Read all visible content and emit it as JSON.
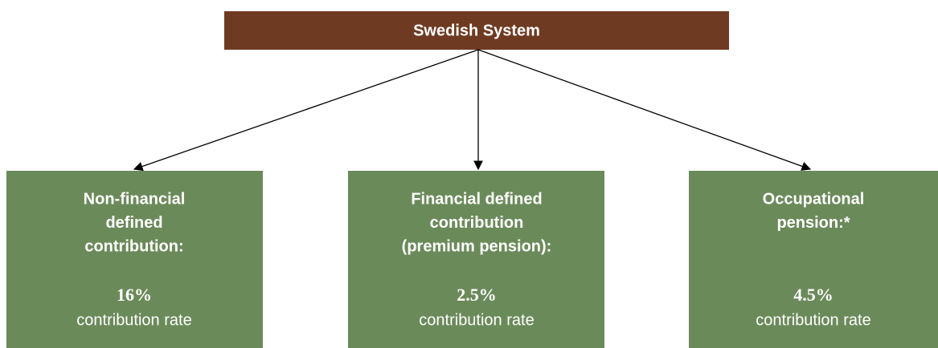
{
  "root": {
    "label": "Swedish System"
  },
  "nodes": [
    {
      "title_lines": [
        "Non-financial",
        "defined",
        "contribution:"
      ],
      "value": "16%",
      "caption": "contribution rate"
    },
    {
      "title_lines": [
        "Financial defined",
        "contribution",
        "(premium pension):"
      ],
      "value": "2.5%",
      "caption": "contribution rate"
    },
    {
      "title_lines": [
        "Occupational",
        "pension:*"
      ],
      "value": "4.5%",
      "caption": "contribution rate"
    }
  ]
}
